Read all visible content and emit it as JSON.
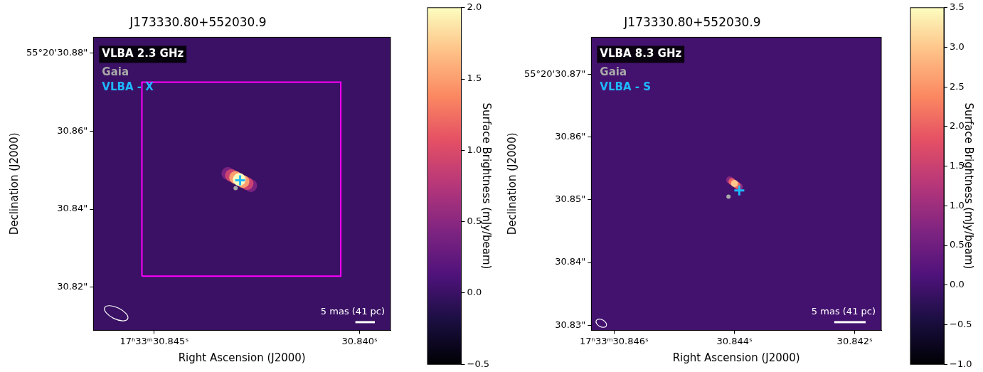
{
  "chart_data": [
    {
      "type": "image",
      "title": "J173330.80+552030.9",
      "band_label": "VLBA 2.3 GHz",
      "x_label": "Right Ascension (J2000)",
      "y_label": "Declination (J2000)",
      "xlim": [
        30.84648,
        30.83925
      ],
      "xticks": [
        {
          "value": 30.845,
          "label": "17ʰ33ᵐ30.845ˢ"
        },
        {
          "value": 30.84,
          "label": "30.840ˢ"
        }
      ],
      "ylim": [
        30.8089,
        30.8841
      ],
      "yticks": [
        {
          "value": 30.88,
          "label": "55°20'30.88\""
        },
        {
          "value": 30.86,
          "label": "30.86\""
        },
        {
          "value": 30.84,
          "label": "30.84\""
        },
        {
          "value": 30.82,
          "label": "30.82\""
        }
      ],
      "grid": false,
      "legend": "upper left",
      "image": {
        "background": 0.0,
        "pixels": [
          [
            30.84321,
            30.84916,
            0.4
          ],
          [
            30.84265,
            30.84604,
            0.4
          ],
          [
            30.84312,
            30.84864,
            0.9
          ],
          [
            30.84274,
            30.84656,
            0.9
          ],
          [
            30.84302,
            30.84812,
            1.5
          ],
          [
            30.84284,
            30.84708,
            1.5
          ],
          [
            30.84293,
            30.8476,
            2.0
          ]
        ]
      },
      "colorbar": {
        "label": "Surface Brightness (mJy/beam)",
        "range": [
          -0.5,
          2.0
        ],
        "ticks": [
          {
            "value": -0.5,
            "label": "−0.5"
          },
          {
            "value": 0,
            "label": "0.0"
          },
          0.5,
          {
            "value": 1,
            "label": "1.0"
          },
          1.5,
          {
            "value": 2,
            "label": "2.0"
          }
        ]
      },
      "series": [
        {
          "name": "Gaia",
          "color": "#a9a9a9",
          "marker": "circle",
          "x": [
            30.84302
          ],
          "y": [
            30.8454
          ]
        },
        {
          "name": "VLBA - X",
          "color": "#1fb8ff",
          "marker": "cross",
          "x": [
            30.84291
          ],
          "y": [
            30.8474
          ]
        }
      ],
      "box": {
        "color": "#ff00ff",
        "x": [
          30.8453,
          30.84046
        ],
        "y": [
          30.8228,
          30.8726
        ]
      },
      "scale_bar": {
        "label": "5 mas (41 pc)",
        "length_mas": 5
      }
    },
    {
      "type": "image",
      "title": "J173330.80+552030.9",
      "band_label": "VLBA 8.3 GHz",
      "x_label": "Right Ascension (J2000)",
      "y_label": "Declination (J2000)",
      "xlim": [
        30.84638,
        30.84156
      ],
      "xticks": [
        {
          "value": 30.846,
          "label": "17ʰ33ᵐ30.846ˢ"
        },
        {
          "value": 30.844,
          "label": "30.844ˢ"
        },
        {
          "value": 30.842,
          "label": "30.842ˢ"
        }
      ],
      "ylim": [
        30.8292,
        30.8759
      ],
      "yticks": [
        {
          "value": 30.87,
          "label": "55°20'30.87\""
        },
        {
          "value": 30.86,
          "label": "30.86\""
        },
        {
          "value": 30.85,
          "label": "30.85\""
        },
        {
          "value": 30.84,
          "label": "30.84\""
        },
        {
          "value": 30.83,
          "label": "30.83\""
        }
      ],
      "grid": false,
      "legend": "upper left",
      "image": {
        "background": 0.0,
        "pixels": [
          [
            30.84408,
            30.85315,
            0.8
          ],
          [
            30.84392,
            30.85205,
            0.8
          ],
          [
            30.84404,
            30.85288,
            2.0
          ],
          [
            30.84396,
            30.85232,
            2.0
          ],
          [
            30.844,
            30.8526,
            3.0
          ]
        ]
      },
      "colorbar": {
        "label": "Surface Brightness (mJy/beam)",
        "range": [
          -1.0,
          3.5
        ],
        "ticks": [
          {
            "value": -1,
            "label": "−1.0"
          },
          {
            "value": -0.5,
            "label": "−0.5"
          },
          {
            "value": 0,
            "label": "0.0"
          },
          0.5,
          {
            "value": 1,
            "label": "1.0"
          },
          1.5,
          {
            "value": 2,
            "label": "2.0"
          },
          2.5,
          {
            "value": 3,
            "label": "3.0"
          },
          3.5
        ]
      },
      "series": [
        {
          "name": "Gaia",
          "color": "#a9a9a9",
          "marker": "circle",
          "x": [
            30.8441
          ],
          "y": [
            30.8505
          ]
        },
        {
          "name": "VLBA - S",
          "color": "#1fb8ff",
          "marker": "cross",
          "x": [
            30.84392
          ],
          "y": [
            30.8515
          ]
        }
      ],
      "scale_bar": {
        "label": "5 mas (41 pc)",
        "length_mas": 5
      }
    }
  ]
}
